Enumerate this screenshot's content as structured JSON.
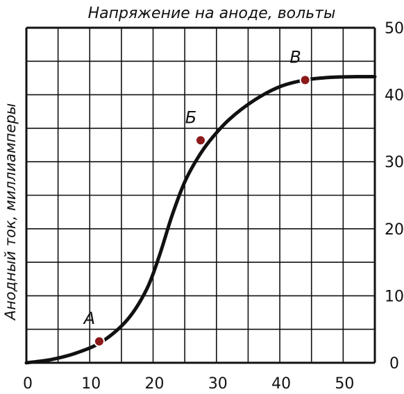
{
  "chart_data": {
    "type": "line",
    "title": "Напряжение на аноде, вольты",
    "xlabel": "",
    "ylabel": "Анодный ток, миллиамперы",
    "xlim": [
      0,
      55
    ],
    "ylim": [
      0,
      50
    ],
    "x_ticks": [
      "0",
      "10",
      "20",
      "30",
      "40",
      "50"
    ],
    "y_ticks": [
      "0",
      "10",
      "20",
      "30",
      "40",
      "50"
    ],
    "x_tick_values": [
      0,
      10,
      20,
      30,
      40,
      50
    ],
    "y_tick_values": [
      0,
      10,
      20,
      30,
      40,
      50
    ],
    "grid": true,
    "series": [
      {
        "x": [
          0,
          4,
          8,
          12,
          16,
          19,
          21,
          23,
          25,
          27,
          29,
          32,
          36,
          40,
          44,
          48,
          52,
          55
        ],
        "y": [
          0,
          0.5,
          1.5,
          3.2,
          6.5,
          11,
          16,
          22,
          27,
          30.5,
          33.2,
          36.3,
          39.2,
          41.2,
          42.2,
          42.6,
          42.7,
          42.7
        ]
      }
    ],
    "annotations": [
      {
        "label": "А",
        "x": 11.5,
        "y": 3.2
      },
      {
        "label": "Б",
        "x": 27.5,
        "y": 33.2
      },
      {
        "label": "В",
        "x": 44,
        "y": 42.2
      }
    ],
    "colors": {
      "line": "#111111",
      "grid": "#111111",
      "marker": "#8b1a1a"
    }
  }
}
